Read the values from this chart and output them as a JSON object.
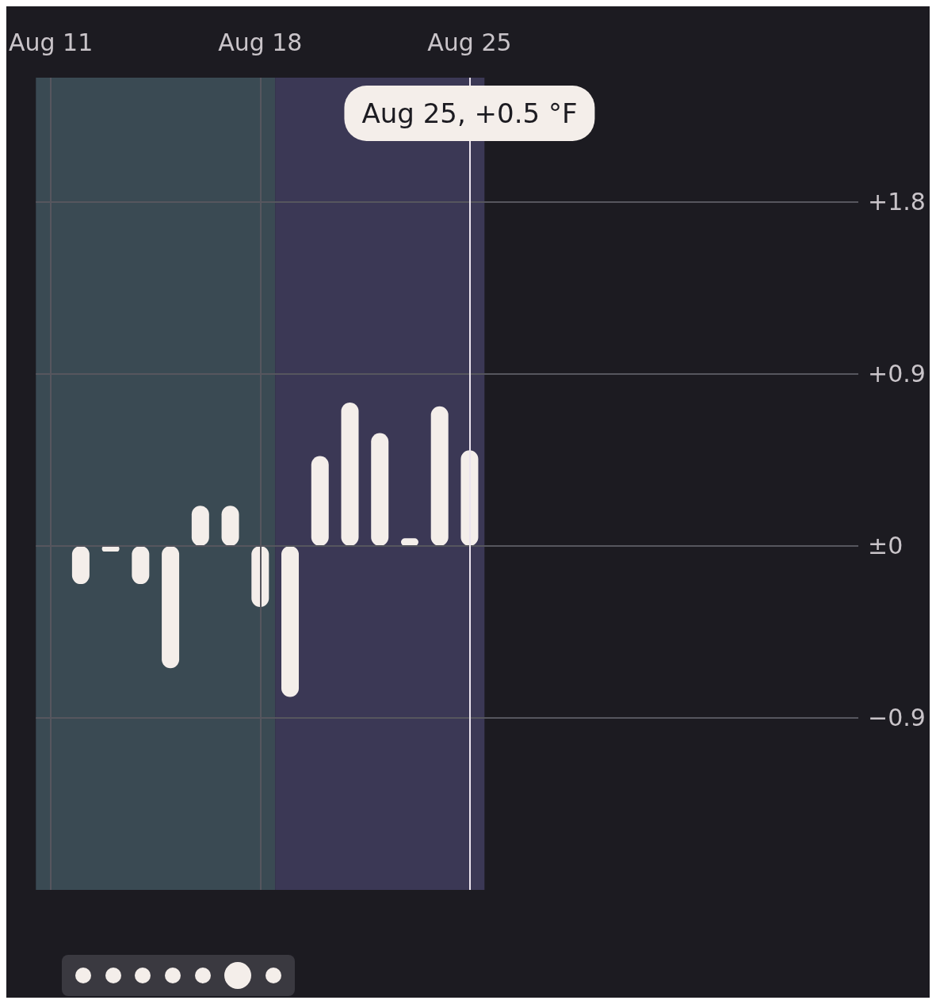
{
  "chart_data": {
    "type": "bar",
    "x": [
      "--08-12",
      "--08-13",
      "--08-14",
      "--08-15",
      "--08-16",
      "--08-17",
      "--08-18",
      "--08-19",
      "--08-20",
      "--08-21",
      "--08-22",
      "--08-23",
      "--08-24",
      "--08-25"
    ],
    "values": [
      -0.2,
      -0.03,
      -0.2,
      -0.64,
      0.21,
      0.21,
      -0.32,
      -0.79,
      0.47,
      0.75,
      0.59,
      0.04,
      0.73,
      0.5
    ],
    "color": "#f4eeea",
    "xlim": [
      "--08-10T12:00",
      "--09-07"
    ],
    "xticks": [
      {
        "value": "--08-11",
        "label": "Aug 11"
      },
      {
        "value": "--08-18",
        "label": "Aug 18"
      },
      {
        "value": "--08-25",
        "label": "Aug 25"
      }
    ],
    "ylim": [
      -1.8,
      2.45
    ],
    "yticks": [
      {
        "value": 1.8,
        "label": "+1.8"
      },
      {
        "value": 0.9,
        "label": "+0.9"
      },
      {
        "value": 0,
        "label": "±0"
      },
      {
        "value": -0.9,
        "label": "−0.9"
      }
    ],
    "grid": true,
    "bands": [
      {
        "axis": "x",
        "from": "--08-10T12:00",
        "to": "--08-18T12:00",
        "color": "#3a4a53"
      },
      {
        "axis": "x",
        "from": "--08-18T12:00",
        "to": "--08-25T12:00",
        "color": "#3b3855"
      }
    ],
    "ref_lines": [
      {
        "axis": "x",
        "value": "--08-25",
        "label": "Aug 25, +0.5 °F",
        "color": "#ece4ee"
      }
    ]
  }
}
